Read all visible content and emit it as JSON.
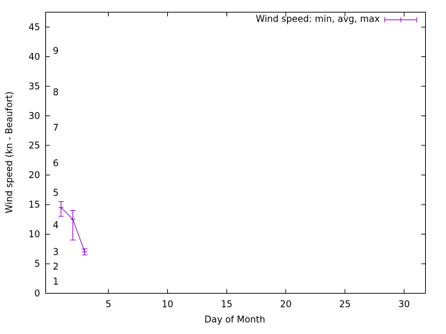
{
  "chart_data": {
    "type": "line",
    "subtype": "yerrorlines",
    "title": "",
    "xlabel": "Day of Month",
    "ylabel": "Wind speed (kn - Beaufort)",
    "legend": {
      "label": "Wind speed: min, avg, max",
      "position": "top-right"
    },
    "background": "#ffffff",
    "axis_color": "#000000",
    "grid": false,
    "x_range": [
      -0.3,
      31.8
    ],
    "y_range": [
      0,
      47.5
    ],
    "x_ticks": [
      5,
      10,
      15,
      20,
      25,
      30
    ],
    "y_ticks": [
      0,
      5,
      10,
      15,
      20,
      25,
      30,
      35,
      40,
      45
    ],
    "beaufort_scale_labels": [
      {
        "label": "1",
        "kn": 2
      },
      {
        "label": "2",
        "kn": 4.5
      },
      {
        "label": "3",
        "kn": 7
      },
      {
        "label": "4",
        "kn": 11.5
      },
      {
        "label": "5",
        "kn": 17
      },
      {
        "label": "6",
        "kn": 22
      },
      {
        "label": "7",
        "kn": 28
      },
      {
        "label": "8",
        "kn": 34
      },
      {
        "label": "9",
        "kn": 41
      }
    ],
    "series": [
      {
        "name": "Wind speed: min, avg, max",
        "color": "#9400d3",
        "points": [
          {
            "day": 1,
            "min": 13,
            "avg": 14.5,
            "max": 15.5
          },
          {
            "day": 2,
            "min": 9,
            "avg": 12.5,
            "max": 14
          },
          {
            "day": 3,
            "min": 6.5,
            "avg": 7,
            "max": 7.5
          }
        ]
      }
    ]
  }
}
